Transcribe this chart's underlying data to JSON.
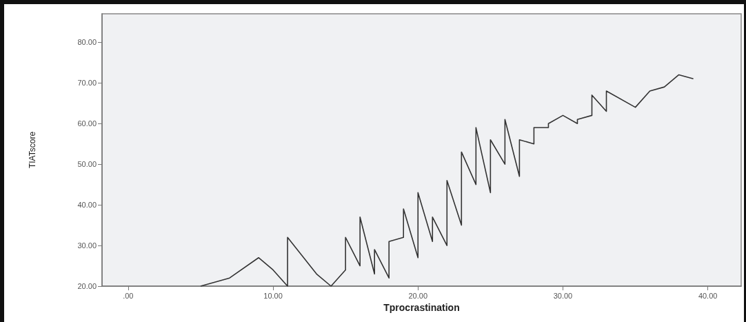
{
  "chart_data": {
    "type": "line",
    "xlabel": "Tprocrastination",
    "ylabel": "TIATscore",
    "series": [
      {
        "color": "#333333",
        "x": [
          5,
          7,
          9,
          10,
          11,
          11,
          13,
          14,
          15,
          15,
          16,
          16,
          17,
          17,
          18,
          18,
          19,
          19,
          20,
          20,
          21,
          21,
          22,
          22,
          23,
          23,
          24,
          24,
          25,
          25,
          26,
          26,
          27,
          27,
          28,
          28,
          29,
          29,
          30,
          31,
          31,
          32,
          32,
          33,
          33,
          35,
          36,
          37,
          38,
          39
        ],
        "values": [
          20,
          22,
          27,
          24,
          20,
          32,
          23,
          20,
          24,
          32,
          25,
          37,
          23,
          29,
          22,
          31,
          32,
          39,
          27,
          43,
          31,
          37,
          30,
          46,
          35,
          53,
          45,
          59,
          43,
          56,
          50,
          61,
          47,
          56,
          55,
          59,
          59,
          60,
          62,
          60,
          61,
          62,
          67,
          63,
          68,
          64,
          68,
          69,
          72,
          71
        ]
      }
    ],
    "xlim": [
      -1.8,
      42.3
    ],
    "ylim": [
      20,
      87
    ],
    "xticks": [
      {
        "value": 0,
        "label": ".00"
      },
      {
        "value": 10,
        "label": "10.00"
      },
      {
        "value": 20,
        "label": "20.00"
      },
      {
        "value": 30,
        "label": "30.00"
      },
      {
        "value": 40,
        "label": "40.00"
      }
    ],
    "yticks": [
      {
        "value": 20,
        "label": "20.00"
      },
      {
        "value": 30,
        "label": "30.00"
      },
      {
        "value": 40,
        "label": "40.00"
      },
      {
        "value": 50,
        "label": "50.00"
      },
      {
        "value": 60,
        "label": "60.00"
      },
      {
        "value": 70,
        "label": "70.00"
      },
      {
        "value": 80,
        "label": "80.00"
      }
    ],
    "grid": false,
    "marker": "none",
    "line_style": "solid"
  }
}
